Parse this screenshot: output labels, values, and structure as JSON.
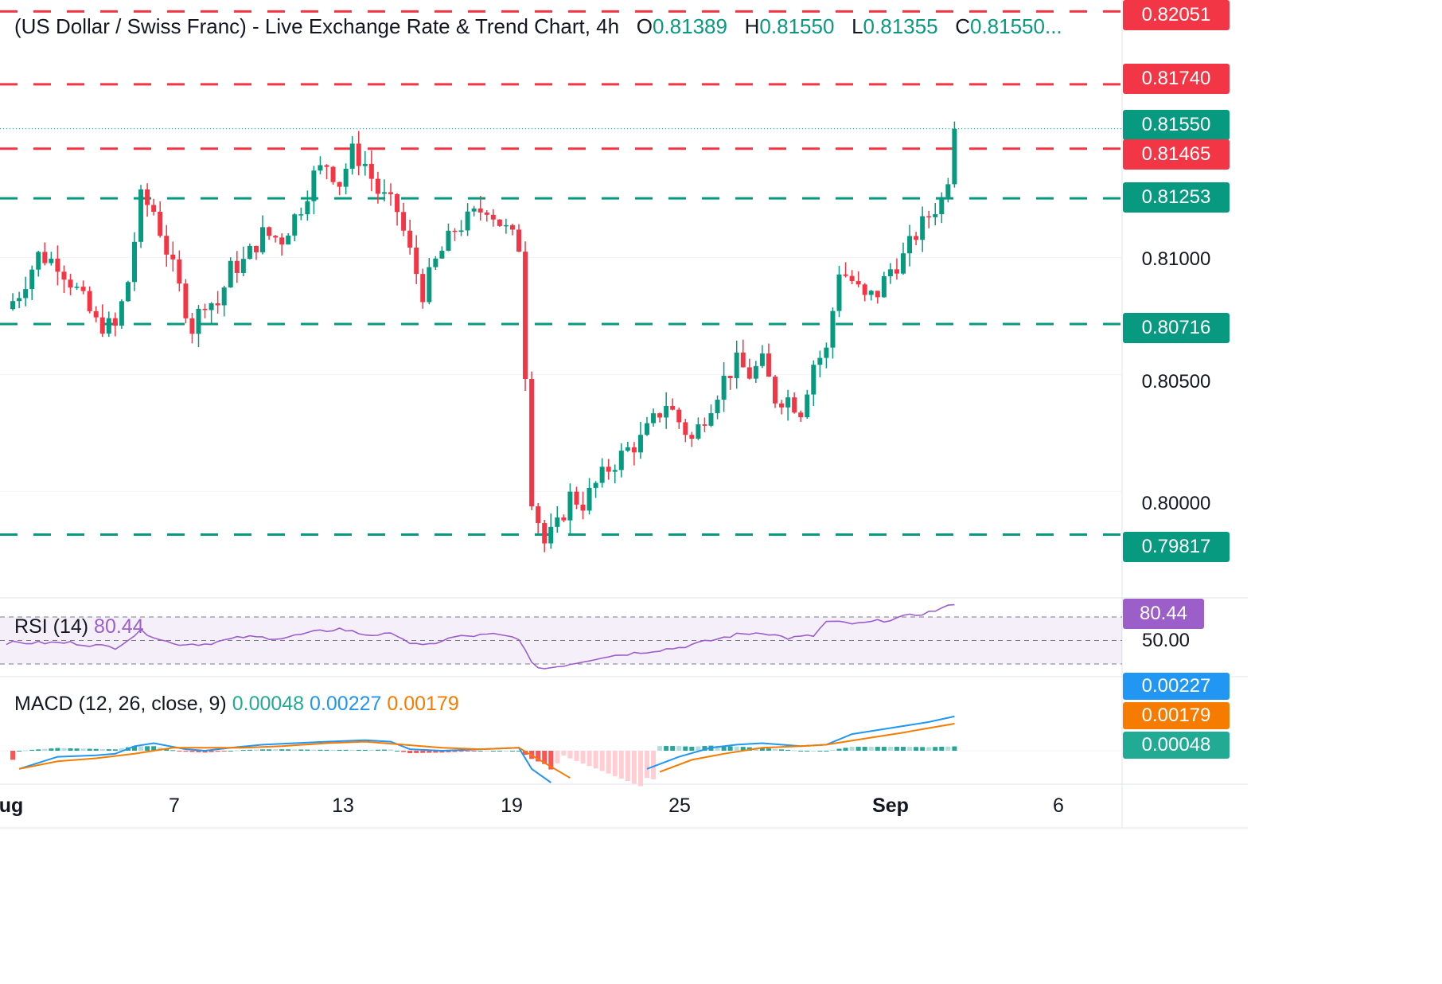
{
  "header": {
    "title": "(US Dollar / Swiss Franc) - Live Exchange Rate & Trend Chart, 4h",
    "o_label": "O",
    "o_value": "0.81389",
    "h_label": "H",
    "h_value": "0.81550",
    "l_label": "L",
    "l_value": "0.81355",
    "c_label": "C",
    "c_value": "0.81550..."
  },
  "colors": {
    "up": "#089981",
    "down": "#f23645",
    "support": "#089981",
    "resistance": "#f23645",
    "rsi": "#9c5fc9",
    "macd": "#2196f3",
    "signal": "#f57c00"
  },
  "price_axis": {
    "labels": [
      "0.81000",
      "0.80500",
      "0.80000"
    ],
    "last_price": "0.81550"
  },
  "levels": {
    "resistance": [
      "0.82051",
      "0.81740",
      "0.81465"
    ],
    "support": [
      "0.81253",
      "0.80716",
      "0.79817"
    ]
  },
  "rsi": {
    "label": "RSI (14)",
    "value": "80.44",
    "mid_label": "50.00"
  },
  "macd": {
    "label": "MACD (12, 26, close, 9)",
    "histogram": "0.00048",
    "macd": "0.00227",
    "signal": "0.00179"
  },
  "date_axis": {
    "ticks": [
      "ug",
      "7",
      "13",
      "19",
      "25",
      "Sep",
      "6"
    ]
  },
  "chart_data": {
    "type": "candlestick",
    "timeframe": "4h",
    "symbol": "USD/CHF",
    "ylim": [
      0.7955,
      0.821
    ],
    "resistance_levels": [
      0.82051,
      0.8174,
      0.81465
    ],
    "support_levels": [
      0.81253,
      0.80716,
      0.79817
    ],
    "last_price": 0.8155,
    "close_path": [
      [
        0,
        0.8078
      ],
      [
        2,
        0.8085
      ],
      [
        5,
        0.8101
      ],
      [
        8,
        0.8098
      ],
      [
        11,
        0.8086
      ],
      [
        14,
        0.8072
      ],
      [
        17,
        0.807
      ],
      [
        19,
        0.809
      ],
      [
        21,
        0.8125
      ],
      [
        23,
        0.812
      ],
      [
        26,
        0.8095
      ],
      [
        29,
        0.807
      ],
      [
        31,
        0.8082
      ],
      [
        33,
        0.808
      ],
      [
        35,
        0.8095
      ],
      [
        37,
        0.8098
      ],
      [
        40,
        0.811
      ],
      [
        43,
        0.8108
      ],
      [
        46,
        0.8122
      ],
      [
        48,
        0.8135
      ],
      [
        50,
        0.814
      ],
      [
        52,
        0.8132
      ],
      [
        54,
        0.8145
      ],
      [
        56,
        0.814
      ],
      [
        58,
        0.8128
      ],
      [
        61,
        0.812
      ],
      [
        63,
        0.8102
      ],
      [
        65,
        0.8085
      ],
      [
        67,
        0.8098
      ],
      [
        70,
        0.8112
      ],
      [
        73,
        0.8118
      ],
      [
        75,
        0.8122
      ],
      [
        77,
        0.8115
      ],
      [
        80,
        0.8105
      ],
      [
        82,
        0.7998
      ],
      [
        84,
        0.7978
      ],
      [
        86,
        0.7985
      ],
      [
        88,
        0.7998
      ],
      [
        90,
        0.7995
      ],
      [
        92,
        0.8003
      ],
      [
        94,
        0.801
      ],
      [
        97,
        0.8018
      ],
      [
        99,
        0.8022
      ],
      [
        101,
        0.803
      ],
      [
        103,
        0.8038
      ],
      [
        105,
        0.803
      ],
      [
        107,
        0.8022
      ],
      [
        110,
        0.8038
      ],
      [
        112,
        0.8048
      ],
      [
        114,
        0.8055
      ],
      [
        116,
        0.805
      ],
      [
        118,
        0.8055
      ],
      [
        120,
        0.804
      ],
      [
        122,
        0.804
      ],
      [
        124,
        0.8035
      ],
      [
        126,
        0.8055
      ],
      [
        128,
        0.806
      ],
      [
        130,
        0.8095
      ],
      [
        132,
        0.809
      ],
      [
        134,
        0.8082
      ],
      [
        136,
        0.8085
      ],
      [
        138,
        0.8095
      ],
      [
        140,
        0.81
      ],
      [
        142,
        0.811
      ],
      [
        144,
        0.8118
      ],
      [
        146,
        0.8125
      ],
      [
        147,
        0.8135
      ],
      [
        148,
        0.8155
      ]
    ],
    "rsi_range": [
      30,
      70,
      50
    ],
    "rsi_path": [
      [
        0,
        48
      ],
      [
        10,
        48
      ],
      [
        17,
        44
      ],
      [
        21,
        58
      ],
      [
        26,
        47
      ],
      [
        31,
        47
      ],
      [
        37,
        53
      ],
      [
        43,
        52
      ],
      [
        48,
        57
      ],
      [
        52,
        60
      ],
      [
        56,
        55
      ],
      [
        61,
        55
      ],
      [
        63,
        48
      ],
      [
        65,
        45
      ],
      [
        70,
        53
      ],
      [
        76,
        55
      ],
      [
        80,
        52
      ],
      [
        82,
        30
      ],
      [
        84,
        26
      ],
      [
        88,
        30
      ],
      [
        93,
        36
      ],
      [
        99,
        40
      ],
      [
        105,
        44
      ],
      [
        110,
        50
      ],
      [
        114,
        55
      ],
      [
        118,
        57
      ],
      [
        122,
        52
      ],
      [
        126,
        54
      ],
      [
        128,
        66
      ],
      [
        133,
        64
      ],
      [
        138,
        68
      ],
      [
        144,
        74
      ],
      [
        148,
        80.44
      ]
    ],
    "macd_path": [
      [
        2,
        -0.0012
      ],
      [
        8,
        -0.0004
      ],
      [
        14,
        -0.0003
      ],
      [
        17,
        -0.0002
      ],
      [
        20,
        0.0003
      ],
      [
        23,
        0.0005
      ],
      [
        28,
        0.0001
      ],
      [
        31,
        0.0
      ],
      [
        35,
        0.0002
      ],
      [
        40,
        0.0004
      ],
      [
        45,
        0.0005
      ],
      [
        50,
        0.0006
      ],
      [
        56,
        0.0007
      ],
      [
        60,
        0.0006
      ],
      [
        63,
        0.0001
      ],
      [
        68,
        0.0
      ],
      [
        74,
        0.0001
      ],
      [
        80,
        0.0002
      ],
      [
        82,
        -0.0012
      ],
      [
        85,
        -0.0028
      ]
    ],
    "macd_path2": [
      [
        100,
        -0.0012
      ],
      [
        105,
        -0.0004
      ],
      [
        110,
        0.0002
      ],
      [
        114,
        0.0004
      ],
      [
        118,
        0.0005
      ],
      [
        124,
        0.0003
      ],
      [
        128,
        0.0004
      ],
      [
        132,
        0.0011
      ],
      [
        138,
        0.0015
      ],
      [
        144,
        0.0019
      ],
      [
        148,
        0.00227
      ]
    ],
    "signal_path": [
      [
        2,
        -0.0012
      ],
      [
        8,
        -0.0007
      ],
      [
        14,
        -0.0005
      ],
      [
        20,
        -0.0002
      ],
      [
        26,
        0.0002
      ],
      [
        31,
        0.0002
      ],
      [
        37,
        0.0002
      ],
      [
        43,
        0.0003
      ],
      [
        50,
        0.0005
      ],
      [
        56,
        0.0006
      ],
      [
        62,
        0.0004
      ],
      [
        68,
        0.0002
      ],
      [
        74,
        0.0001
      ],
      [
        80,
        0.0002
      ],
      [
        84,
        -0.0008
      ],
      [
        88,
        -0.0018
      ]
    ],
    "signal_path2": [
      [
        102,
        -0.0014
      ],
      [
        107,
        -0.0006
      ],
      [
        112,
        -0.0002
      ],
      [
        118,
        0.0002
      ],
      [
        124,
        0.0003
      ],
      [
        128,
        0.0004
      ],
      [
        134,
        0.0008
      ],
      [
        140,
        0.0012
      ],
      [
        144,
        0.0015
      ],
      [
        148,
        0.00179
      ]
    ]
  }
}
